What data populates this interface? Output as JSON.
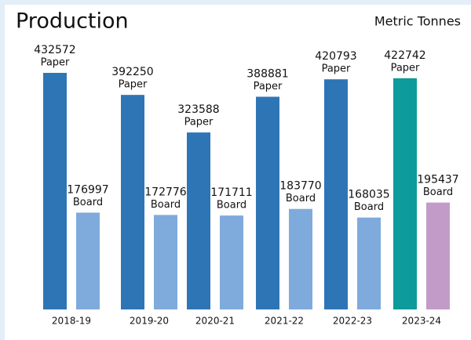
{
  "chart_data": {
    "type": "bar",
    "title": "Production",
    "subtitle": "Metric Tonnes",
    "categories": [
      "2018-19",
      "2019-20",
      "2020-21",
      "2021-22",
      "2022-23",
      "2023-24"
    ],
    "series": [
      {
        "name": "Paper",
        "colors": [
          "#2e75b6",
          "#2e75b6",
          "#2e75b6",
          "#2e75b6",
          "#2e75b6",
          "#0e9b9b"
        ],
        "values": [
          432572,
          392250,
          323588,
          388881,
          420793,
          422742
        ]
      },
      {
        "name": "Board",
        "colors": [
          "#7faadc",
          "#7faadc",
          "#7faadc",
          "#7faadc",
          "#7faadc",
          "#c39bc9"
        ],
        "values": [
          176997,
          172776,
          171711,
          183770,
          168035,
          195437
        ]
      }
    ]
  }
}
